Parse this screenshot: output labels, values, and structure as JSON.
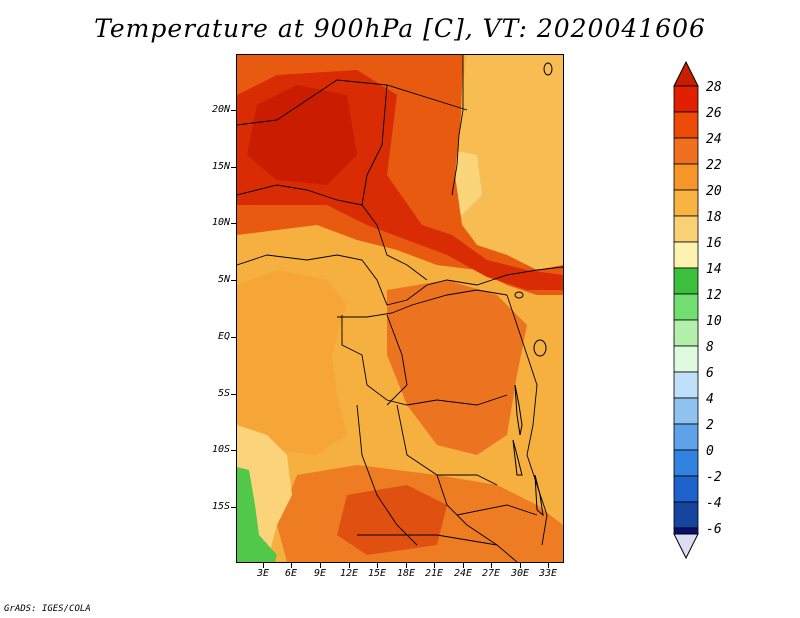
{
  "title": "Temperature at 900hPa [C], VT: 2020041606",
  "footer": "GrADS: IGES/COLA",
  "map": {
    "region": "Central Africa",
    "variable": "Temperature",
    "level": "900hPa",
    "units": "C",
    "valid_time": "2020041606",
    "lat_labels": [
      "20N",
      "15N",
      "10N",
      "5N",
      "EQ",
      "5S",
      "10S",
      "15S"
    ],
    "lon_labels": [
      "3E",
      "6E",
      "9E",
      "12E",
      "15E",
      "18E",
      "21E",
      "24E",
      "27E",
      "30E",
      "33E"
    ]
  },
  "colorbar": {
    "labels": [
      "28",
      "26",
      "24",
      "22",
      "20",
      "18",
      "16",
      "14",
      "12",
      "10",
      "8",
      "6",
      "4",
      "2",
      "0",
      "-2",
      "-4",
      "-6"
    ],
    "colors": [
      "#7d0000",
      "#bf0000",
      "#e02000",
      "#f06020",
      "#f59b2b",
      "#f8c14f",
      "#fae390",
      "#fdf8c0",
      "#3fbf3f",
      "#78e278",
      "#b8f0b0",
      "#e0fae0",
      "#c0e0f8",
      "#90c4f0",
      "#5aa0e8",
      "#3080e0",
      "#1f60c8",
      "#1840a0",
      "#001070",
      "#d8d8f0"
    ]
  }
}
